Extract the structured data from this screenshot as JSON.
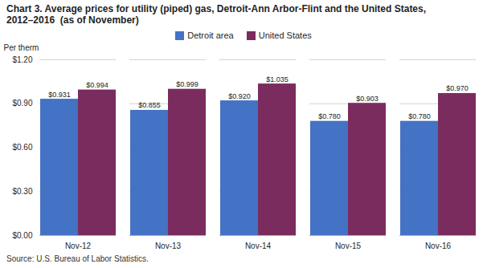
{
  "chart_data": {
    "type": "bar",
    "title": "Chart 3. Average prices for utility (piped) gas, Detroit-Ann Arbor-Flint and the United States,",
    "subtitle": "2012–2016  (as of November)",
    "y_label": "Per therm",
    "caption": "Source: U.S. Bureau of Labor Statistics.",
    "categories": [
      "Nov-12",
      "Nov-13",
      "Nov-14",
      "Nov-15",
      "Nov-16"
    ],
    "series": [
      {
        "name": "Detroit area",
        "color": "#4472C4",
        "values": [
          0.931,
          0.855,
          0.92,
          0.78,
          0.78
        ],
        "value_labels": [
          "$0.931",
          "$0.855",
          "$0.920",
          "$0.780",
          "$0.780"
        ]
      },
      {
        "name": "United States",
        "color": "#7B2C5E",
        "values": [
          0.994,
          0.999,
          1.035,
          0.903,
          0.97
        ],
        "value_labels": [
          "$0.994",
          "$0.999",
          "$1.035",
          "$0.903",
          "$0.970"
        ]
      }
    ],
    "ylim": [
      0.0,
      1.2
    ],
    "yticks": [
      {
        "value": 0.0,
        "label": "$0.00"
      },
      {
        "value": 0.3,
        "label": "$0.30"
      },
      {
        "value": 0.6,
        "label": "$0.60"
      },
      {
        "value": 0.9,
        "label": "$0.90"
      },
      {
        "value": 1.2,
        "label": "$1.20"
      }
    ],
    "grid": true,
    "legend": "top",
    "data_labels": true
  }
}
